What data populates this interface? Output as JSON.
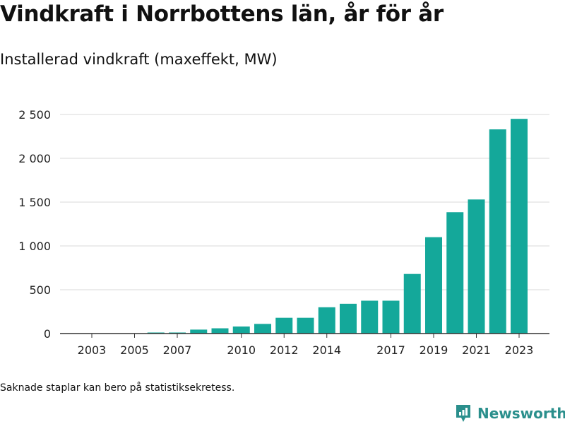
{
  "title": "Vindkraft i Norrbottens län, år för år",
  "subtitle": "Installerad vindkraft (maxeffekt, MW)",
  "footnote": "Saknade staplar kan bero på statistiksekretess.",
  "brand": {
    "name": "Newsworthy",
    "icon": "newsworthy-logo-icon",
    "color": "#2a8f8c"
  },
  "colors": {
    "bar": "#14a89a",
    "grid": "#d9d9d9",
    "axis": "#333333"
  },
  "chart_data": {
    "type": "bar",
    "title": "Vindkraft i Norrbottens län, år för år",
    "subtitle": "Installerad vindkraft (maxeffekt, MW)",
    "xlabel": "",
    "ylabel": "",
    "ylim": [
      0,
      2500
    ],
    "yticks": [
      0,
      500,
      1000,
      1500,
      2000,
      2500
    ],
    "ytick_labels": [
      "0",
      "500",
      "1 000",
      "1 500",
      "2 000",
      "2 500"
    ],
    "xtick_labels": [
      "2003",
      "2005",
      "2007",
      "2010",
      "2012",
      "2014",
      "2017",
      "2019",
      "2021",
      "2023"
    ],
    "grid": true,
    "categories": [
      2003,
      2004,
      2005,
      2006,
      2007,
      2008,
      2009,
      2010,
      2011,
      2012,
      2013,
      2014,
      2015,
      2016,
      2017,
      2018,
      2019,
      2020,
      2021,
      2022,
      2023
    ],
    "values": [
      2,
      2,
      2,
      12,
      12,
      45,
      60,
      80,
      110,
      180,
      180,
      300,
      340,
      375,
      375,
      680,
      1100,
      1385,
      1530,
      2330,
      2450
    ]
  }
}
